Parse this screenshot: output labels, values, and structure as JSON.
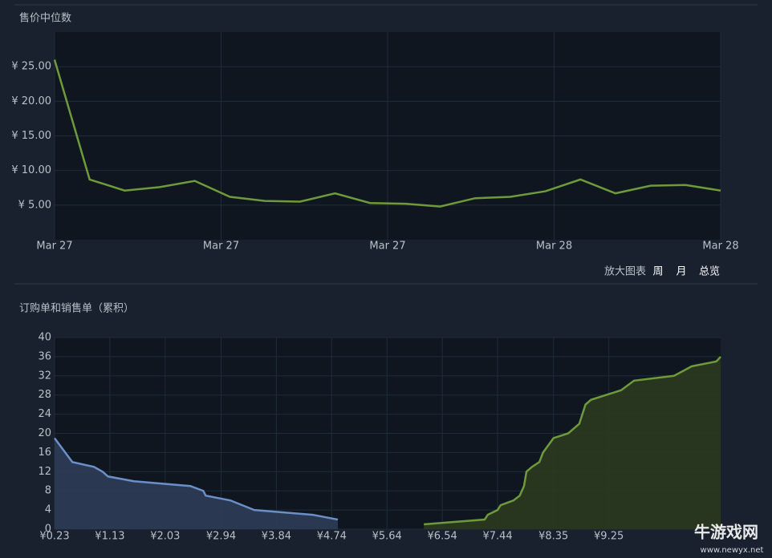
{
  "chart_data": [
    {
      "type": "line",
      "title": "售价中位数",
      "color": "#6e9a3c",
      "values": [
        26,
        8.7,
        7.1,
        7.6,
        8.5,
        6.2,
        5.6,
        5.5,
        6.7,
        5.3,
        5.2,
        4.8,
        6.0,
        6.2,
        7.0,
        8.7,
        6.7,
        7.8,
        7.9,
        7.1
      ],
      "x_labels": [
        "Mar 27",
        "Mar 27",
        "Mar 27",
        "Mar 28",
        "Mar 28"
      ],
      "ylim": [
        0,
        30
      ],
      "yticks": [
        {
          "value": 5,
          "label": "¥ 5.00"
        },
        {
          "value": 10,
          "label": "¥ 10.00"
        },
        {
          "value": 15,
          "label": "¥ 15.00"
        },
        {
          "value": 20,
          "label": "¥ 20.00"
        },
        {
          "value": 25,
          "label": "¥ 25.00"
        }
      ],
      "grid": true
    },
    {
      "type": "area",
      "title": "订购单和销售单（累积）",
      "series": [
        {
          "name": "订购单",
          "color": "#6b8fc7",
          "fill": "#2d3c57",
          "x": [
            0.23,
            0.52,
            0.87,
            1.01,
            1.1,
            1.52,
            2.44,
            2.65,
            2.69,
            3.09,
            3.48,
            4.43,
            4.84
          ],
          "values": [
            19,
            14,
            13,
            12,
            11,
            10,
            9,
            8,
            7,
            6,
            4,
            3,
            2
          ]
        },
        {
          "name": "销售单",
          "color": "#6e9a3c",
          "fill": "#2b3a20",
          "x": [
            6.24,
            7.23,
            7.28,
            7.44,
            7.49,
            7.7,
            7.8,
            7.87,
            7.91,
            8.0,
            8.12,
            8.18,
            8.35,
            8.59,
            8.77,
            8.87,
            8.96,
            9.45,
            9.66,
            10.31,
            10.6,
            11.0,
            11.07
          ],
          "values": [
            1,
            2,
            3,
            4,
            5,
            6,
            7,
            9,
            12,
            13,
            14,
            16,
            19,
            20,
            22,
            26,
            27,
            29,
            31,
            32,
            34,
            35,
            36
          ]
        }
      ],
      "xlim": [
        0.23,
        11.07
      ],
      "xticks": [
        {
          "value": 0.23,
          "label": "¥0.23"
        },
        {
          "value": 1.13,
          "label": "¥1.13"
        },
        {
          "value": 2.03,
          "label": "¥2.03"
        },
        {
          "value": 2.94,
          "label": "¥2.94"
        },
        {
          "value": 3.84,
          "label": "¥3.84"
        },
        {
          "value": 4.74,
          "label": "¥4.74"
        },
        {
          "value": 5.64,
          "label": "¥5.64"
        },
        {
          "value": 6.54,
          "label": "¥6.54"
        },
        {
          "value": 7.44,
          "label": "¥7.44"
        },
        {
          "value": 8.35,
          "label": "¥8.35"
        },
        {
          "value": 9.25,
          "label": "¥9.25"
        }
      ],
      "ylim": [
        0,
        40
      ],
      "yticks": [
        0,
        4,
        8,
        12,
        16,
        20,
        24,
        28,
        32,
        36,
        40
      ],
      "grid": true
    }
  ],
  "controls": {
    "zoom": "放大图表",
    "ranges": [
      "周",
      "月",
      "总览"
    ]
  },
  "watermark": {
    "name": "牛游戏网",
    "url": "www.newyx.net"
  }
}
